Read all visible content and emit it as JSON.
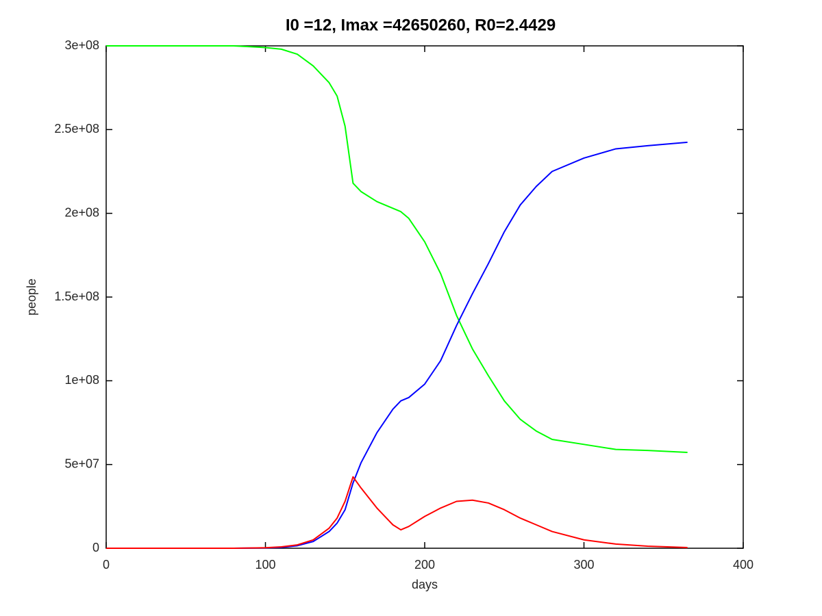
{
  "chart_data": {
    "type": "line",
    "title": "I0 =12, Imax =42650260, R0=2.4429",
    "x_label": "days",
    "y_label": "people",
    "x": [
      0,
      20,
      40,
      60,
      80,
      100,
      110,
      120,
      130,
      140,
      145,
      150,
      155,
      160,
      170,
      180,
      185,
      190,
      200,
      210,
      220,
      230,
      240,
      250,
      260,
      270,
      280,
      300,
      320,
      340,
      365
    ],
    "series": [
      {
        "color": "#00ff00",
        "values": [
          300000000,
          300000000,
          300000000,
          300000000,
          300000000,
          299000000,
          298000000,
          295000000,
          288000000,
          278000000,
          270000000,
          252000000,
          218000000,
          213000000,
          207000000,
          203000000,
          201000000,
          197000000,
          183000000,
          164000000,
          139000000,
          119000000,
          103000000,
          88000000,
          77000000,
          70000000,
          65000000,
          62000000,
          59000000,
          58400000,
          57200000
        ]
      },
      {
        "color": "#0000ff",
        "values": [
          0,
          5,
          20,
          60,
          150,
          200000,
          500000,
          1500000,
          4000000,
          10000000,
          15000000,
          23000000,
          39000000,
          51000000,
          69000000,
          83000000,
          88000000,
          90000000,
          98000000,
          112000000,
          133000000,
          152000000,
          170000000,
          189000000,
          205000000,
          216000000,
          225000000,
          233000000,
          238500000,
          240400000,
          242400000
        ]
      },
      {
        "color": "#ff0000",
        "values": [
          12,
          30,
          80,
          200,
          500,
          300000,
          800000,
          2000000,
          5000000,
          12000000,
          18000000,
          28000000,
          42650260,
          36000000,
          24000000,
          14000000,
          11000000,
          13000000,
          19000000,
          24000000,
          28000000,
          28700000,
          27000000,
          23000000,
          18000000,
          14000000,
          10000000,
          5000000,
          2500000,
          1200000,
          400000
        ]
      }
    ],
    "xlim": [
      0,
      400
    ],
    "xticks": [
      0,
      100,
      200,
      300,
      400
    ],
    "ylim": [
      0,
      300000000
    ],
    "yticks": [
      0,
      {
        "value": 50000000,
        "label": "5e+07"
      },
      {
        "value": 100000000,
        "label": "1e+08"
      },
      {
        "value": 150000000,
        "label": "1.5e+08"
      },
      {
        "value": 200000000,
        "label": "2e+08"
      },
      {
        "value": 250000000,
        "label": "2.5e+08"
      },
      {
        "value": 300000000,
        "label": "3e+08"
      }
    ]
  }
}
